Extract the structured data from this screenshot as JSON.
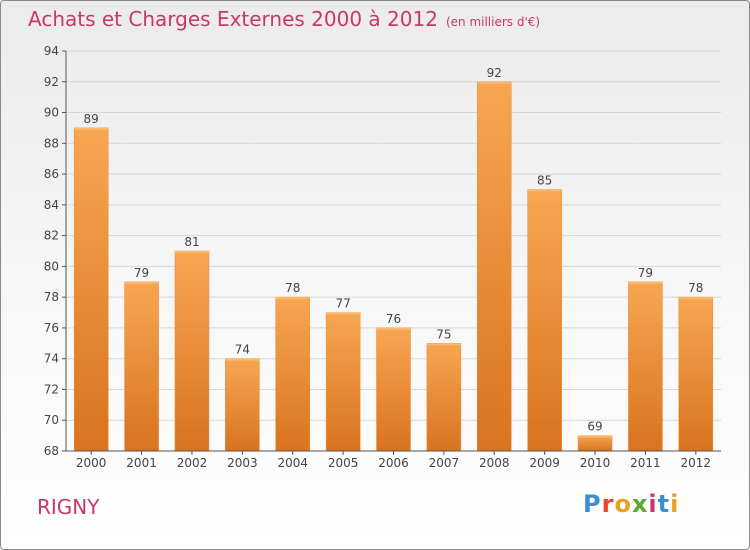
{
  "page": {
    "title": "Achats et Charges Externes 2000 à 2012",
    "unit": "(en milliers d'€)",
    "town": "RIGNY",
    "logo": [
      "P",
      "r",
      "o",
      "x",
      "i",
      "t",
      "i"
    ],
    "logo_colors": [
      "#3b8fd0",
      "#e8462c",
      "#e8a020",
      "#5aa832",
      "#c8386a",
      "#3b8fd0",
      "#e8a020"
    ]
  },
  "chart_data": {
    "type": "bar",
    "title": "Achats et Charges Externes 2000 à 2012",
    "xlabel": "",
    "ylabel": "(en milliers d'€)",
    "categories": [
      "2000",
      "2001",
      "2002",
      "2003",
      "2004",
      "2005",
      "2006",
      "2007",
      "2008",
      "2009",
      "2010",
      "2011",
      "2012"
    ],
    "values": [
      89,
      79,
      81,
      74,
      78,
      77,
      76,
      75,
      92,
      85,
      69,
      79,
      78
    ],
    "ylim": [
      68,
      94
    ],
    "yticks": [
      68,
      70,
      72,
      74,
      76,
      78,
      80,
      82,
      84,
      86,
      88,
      90,
      92,
      94
    ],
    "grid": true,
    "bar_color": "#f0913a"
  }
}
